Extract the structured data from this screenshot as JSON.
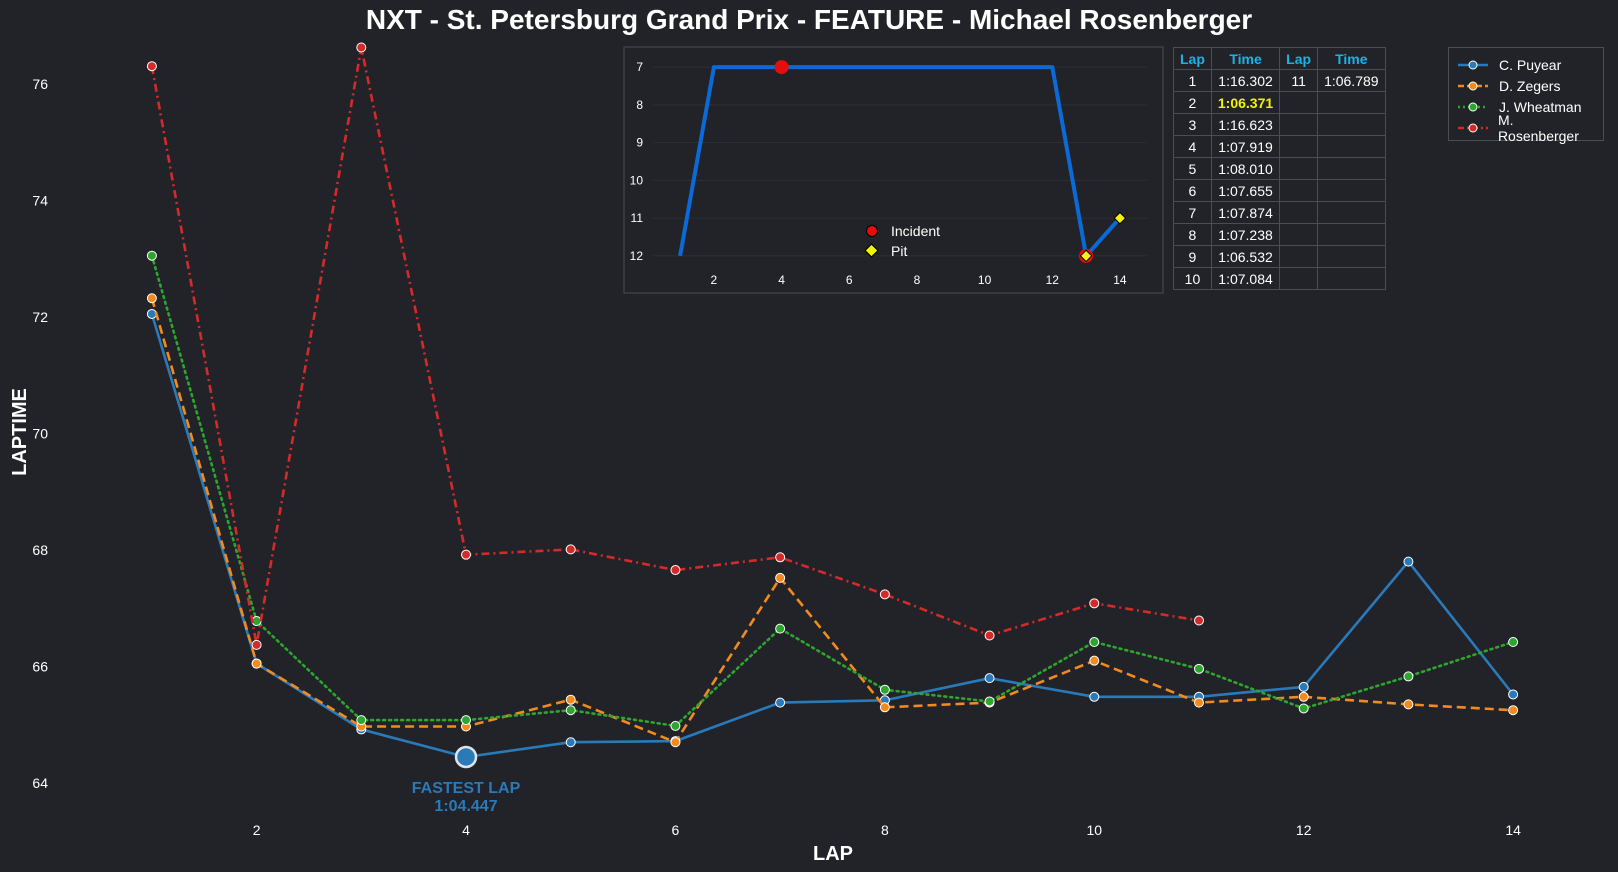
{
  "title": "NXT - St. Petersburg Grand Prix - FEATURE - Michael Rosenberger",
  "colors": {
    "background": "#212328",
    "text": "#ffffff",
    "accent": "#1ab2e8",
    "best_lap": "#f2f20f",
    "incident": "#e80d0d",
    "pit": "#f2f20f",
    "position_line": "#0a6ad8"
  },
  "chart_data": [
    {
      "type": "line",
      "xlabel": "LAP",
      "ylabel": "LAPTIME",
      "xlim": [
        0.6,
        14.4
      ],
      "ylim": [
        63.4,
        76.7
      ],
      "xticks": [
        2,
        4,
        6,
        8,
        10,
        12,
        14
      ],
      "yticks": [
        64,
        66,
        68,
        70,
        72,
        74,
        76
      ],
      "legend_position": "top-right",
      "series": [
        {
          "name": "C. Puyear",
          "color": "#2a7ab9",
          "style": "solid",
          "x": [
            1,
            2,
            3,
            4,
            5,
            6,
            7,
            8,
            9,
            10,
            11,
            12,
            13,
            14
          ],
          "values": [
            72.05,
            66.05,
            64.92,
            64.447,
            64.7,
            64.72,
            65.38,
            65.42,
            65.8,
            65.48,
            65.48,
            65.65,
            67.8,
            65.52
          ]
        },
        {
          "name": "D. Zegers",
          "color": "#f28a1e",
          "style": "dashed",
          "x": [
            1,
            2,
            3,
            4,
            5,
            6,
            7,
            8,
            9,
            10,
            11,
            12,
            13,
            14
          ],
          "values": [
            72.32,
            66.05,
            64.97,
            64.97,
            65.43,
            64.7,
            67.52,
            65.3,
            65.38,
            66.1,
            65.38,
            65.48,
            65.35,
            65.25
          ]
        },
        {
          "name": "J. Wheatman",
          "color": "#2ea52e",
          "style": "dotted",
          "x": [
            1,
            2,
            3,
            4,
            5,
            6,
            7,
            8,
            9,
            10,
            11,
            12,
            13,
            14
          ],
          "values": [
            73.05,
            66.78,
            65.08,
            65.08,
            65.25,
            64.98,
            66.65,
            65.6,
            65.4,
            66.42,
            65.96,
            65.28,
            65.83,
            66.42
          ]
        },
        {
          "name": "M. Rosenberger",
          "color": "#d42a2a",
          "style": "dashdot",
          "x": [
            1,
            2,
            3,
            4,
            5,
            6,
            7,
            8,
            9,
            10,
            11
          ],
          "values": [
            76.302,
            66.371,
            76.623,
            67.919,
            68.01,
            67.655,
            67.874,
            67.238,
            66.532,
            67.084,
            66.789
          ]
        }
      ],
      "annotation": {
        "label": "FASTEST LAP",
        "time": "1:04.447",
        "x": 4,
        "y": 64.447,
        "color": "#2a7ab9"
      }
    },
    {
      "type": "line",
      "xlim": [
        0.2,
        14.8
      ],
      "ylim": [
        12.4,
        6.6
      ],
      "xticks": [
        2,
        4,
        6,
        8,
        10,
        12,
        14
      ],
      "yticks": [
        7,
        8,
        9,
        10,
        11,
        12
      ],
      "series": [
        {
          "name": "",
          "x": [
            1,
            2,
            3,
            4,
            5,
            6,
            7,
            8,
            9,
            10,
            11,
            12,
            13,
            14
          ],
          "values": [
            12,
            7,
            7,
            7,
            7,
            7,
            7,
            7,
            7,
            7,
            7,
            7,
            12,
            11
          ]
        }
      ],
      "incidents": [
        {
          "x": 4,
          "y": 7
        },
        {
          "x": 13,
          "y": 12
        }
      ],
      "pits": [
        {
          "x": 13,
          "y": 12
        },
        {
          "x": 14,
          "y": 11
        }
      ],
      "legend": [
        "Incident",
        "Pit"
      ]
    }
  ],
  "table": {
    "headers": [
      "Lap",
      "Time",
      "Lap",
      "Time"
    ],
    "rows": [
      [
        "1",
        "1:16.302",
        "11",
        "1:06.789"
      ],
      [
        "2",
        "1:06.371",
        "",
        ""
      ],
      [
        "3",
        "1:16.623",
        "",
        ""
      ],
      [
        "4",
        "1:07.919",
        "",
        ""
      ],
      [
        "5",
        "1:08.010",
        "",
        ""
      ],
      [
        "6",
        "1:07.655",
        "",
        ""
      ],
      [
        "7",
        "1:07.874",
        "",
        ""
      ],
      [
        "8",
        "1:07.238",
        "",
        ""
      ],
      [
        "9",
        "1:06.532",
        "",
        ""
      ],
      [
        "10",
        "1:07.084",
        "",
        ""
      ]
    ],
    "best_lap_time": "1:06.371"
  }
}
